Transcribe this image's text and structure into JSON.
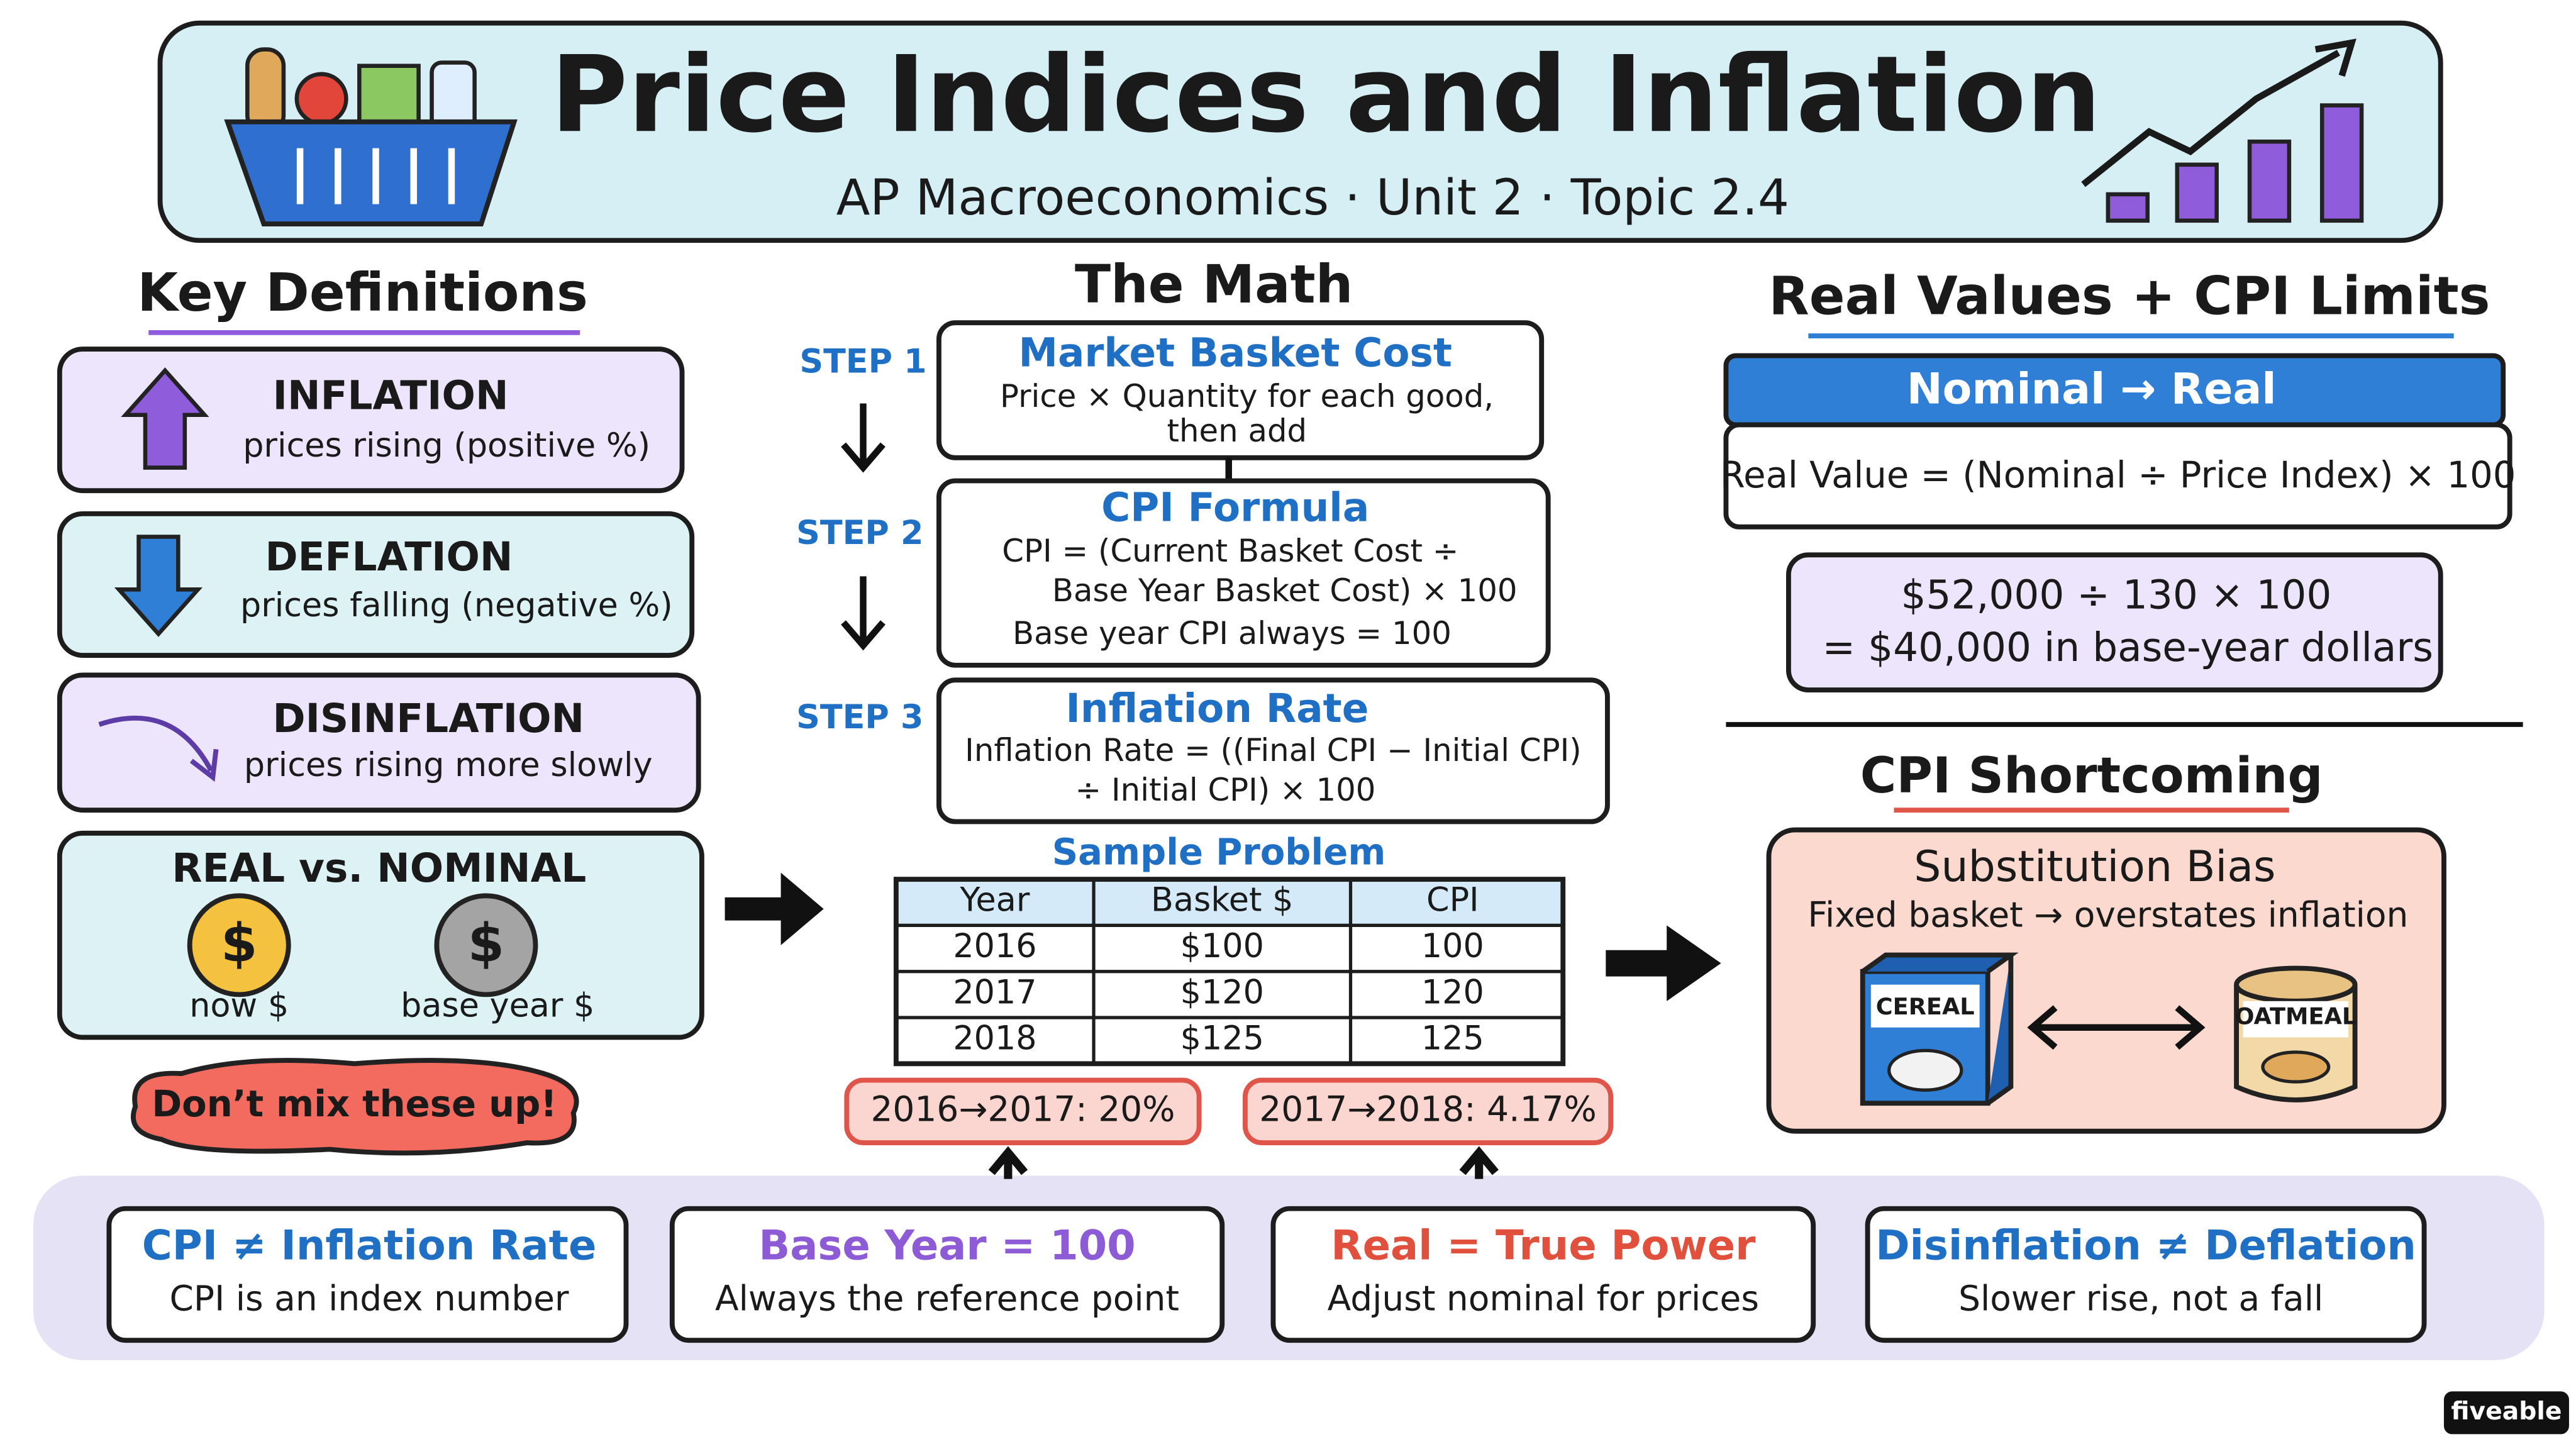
{
  "header": {
    "title": "Price Indices and Inflation",
    "subtitle": "AP Macroeconomics · Unit 2 · Topic 2.4"
  },
  "definitions": {
    "heading": "Key Definitions",
    "items": [
      {
        "term": "INFLATION",
        "meaning": "prices rising (positive %)"
      },
      {
        "term": "DEFLATION",
        "meaning": "prices falling (negative %)"
      },
      {
        "term": "DISINFLATION",
        "meaning": "prices rising more slowly"
      }
    ],
    "real_nominal": {
      "title": "REAL vs. NOMINAL",
      "coins": [
        {
          "symbol": "$",
          "label": "now $"
        },
        {
          "symbol": "$",
          "label": "base year $"
        }
      ]
    },
    "warning": "Don’t mix these up!"
  },
  "math": {
    "heading": "The Math",
    "steps": [
      {
        "label": "STEP 1",
        "title": "Market Basket Cost",
        "lines": [
          "Price × Quantity for each good,",
          "then add"
        ]
      },
      {
        "label": "STEP 2",
        "title": "CPI Formula",
        "lines": [
          "CPI = (Current Basket Cost ÷",
          "Base Year Basket Cost) × 100",
          "Base year CPI always = 100"
        ]
      },
      {
        "label": "STEP 3",
        "title": "Inflation Rate",
        "lines": [
          "Inflation Rate = ((Final CPI − Initial CPI)",
          "÷ Initial CPI) × 100"
        ]
      }
    ],
    "sample": {
      "title": "Sample Problem",
      "table": {
        "header": [
          "Year",
          "Basket $",
          "CPI"
        ],
        "rows": [
          [
            "2016",
            "$100",
            "100"
          ],
          [
            "2017",
            "$120",
            "120"
          ],
          [
            "2018",
            "$125",
            "125"
          ]
        ]
      },
      "results": [
        "2016→2017: 20%",
        "2017→2018: 4.17%"
      ]
    }
  },
  "real_values": {
    "heading": "Real Values + CPI Limits",
    "banner": "Nominal → Real",
    "formula": "Real Value = (Nominal ÷ Price Index) × 100",
    "example": [
      "$52,000 ÷ 130 × 100",
      "= $40,000 in base-year dollars"
    ],
    "shortcoming": {
      "heading": "CPI Shortcoming",
      "title": "Substitution Bias",
      "text": "Fixed basket → overstates inflation",
      "items": [
        "CEREAL",
        "OATMEAL"
      ]
    }
  },
  "footer": [
    {
      "title": "CPI ≠ Inflation Rate",
      "text": "CPI is an index number"
    },
    {
      "title": "Base Year = 100",
      "text": "Always the reference point"
    },
    {
      "title": "Real = True Power",
      "text": "Adjust nominal for prices"
    },
    {
      "title": "Disinflation ≠ Deflation",
      "text": "Slower rise, not a fall"
    }
  ],
  "brand": "fiveable"
}
